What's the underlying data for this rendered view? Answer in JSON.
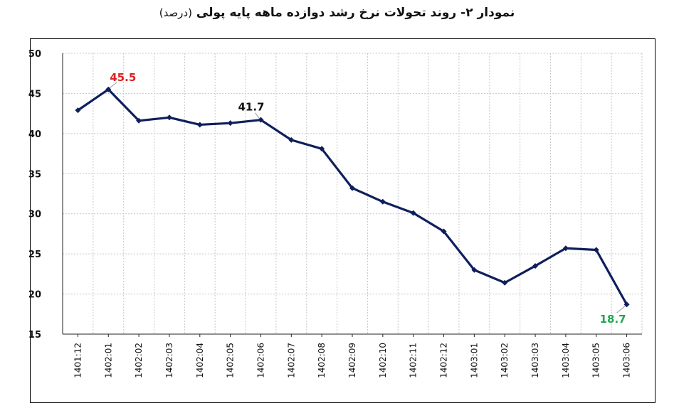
{
  "chart_data": {
    "type": "line",
    "title": "نمودار ۲- روند تحولات نرخ رشد دوازده ماهه پایه پولی",
    "subtitle": "(درصد)",
    "xlabel": "",
    "ylabel": "",
    "ylim": [
      15,
      50
    ],
    "yticks": [
      "15",
      "20",
      "25",
      "30",
      "35",
      "40",
      "45",
      "50"
    ],
    "grid": true,
    "categories": [
      "1401:12",
      "1402:01",
      "1402:02",
      "1402:03",
      "1402:04",
      "1402:05",
      "1402:06",
      "1402:07",
      "1402:08",
      "1402:09",
      "1402:10",
      "1402:11",
      "1402:12",
      "1403:01",
      "1403:02",
      "1403:03",
      "1403:04",
      "1403:05",
      "1403:06"
    ],
    "series": [
      {
        "values": [
          42.9,
          45.5,
          41.6,
          42.0,
          41.1,
          41.3,
          41.7,
          39.2,
          38.1,
          33.2,
          31.5,
          30.1,
          27.8,
          23.0,
          21.4,
          23.5,
          25.7,
          25.5,
          18.7
        ],
        "color": "#0f1f5c"
      }
    ],
    "annotations": [
      {
        "index": 1,
        "text": "45.5",
        "color": "#e02020"
      },
      {
        "index": 6,
        "text": "41.7",
        "color": "#111111"
      },
      {
        "index": 18,
        "text": "18.7",
        "color": "#1fa84f"
      }
    ]
  }
}
